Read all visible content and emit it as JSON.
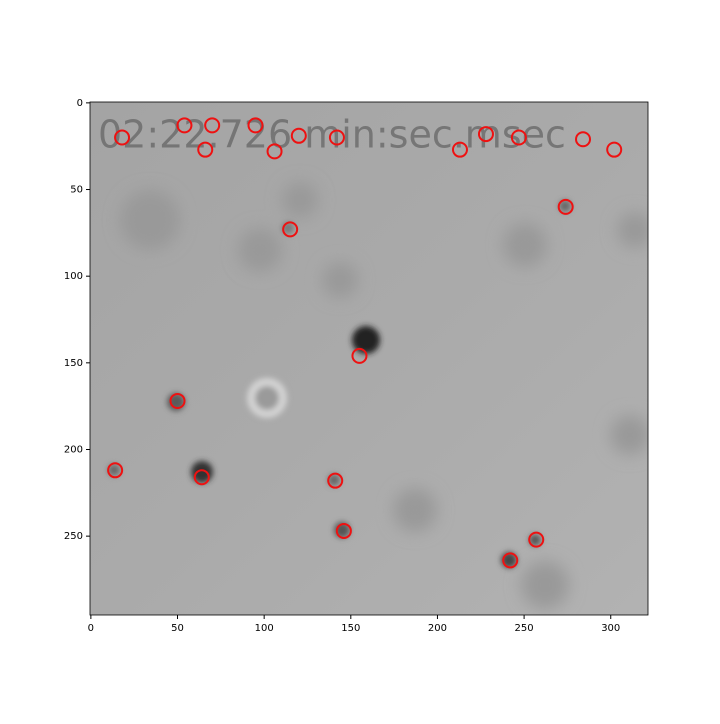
{
  "chart_data": {
    "type": "scatter",
    "annotation": "02:22.726 min:sec.msec",
    "x": [
      18,
      54,
      70,
      66,
      95,
      106,
      120,
      142,
      213,
      228,
      247,
      284,
      302,
      274,
      115,
      155,
      50,
      14,
      64,
      141,
      146,
      257,
      242
    ],
    "y": [
      20,
      13,
      13,
      27,
      13,
      28,
      19,
      20,
      27,
      18,
      20,
      21,
      27,
      60,
      73,
      146,
      172,
      212,
      216,
      218,
      247,
      252,
      264
    ],
    "color": "#ee1111",
    "xlim": [
      -0.5,
      321.5
    ],
    "ylim": [
      295.5,
      -0.5
    ],
    "xticks": [
      0,
      50,
      100,
      150,
      200,
      250,
      300
    ],
    "yticks": [
      0,
      50,
      100,
      150,
      200,
      250
    ]
  }
}
